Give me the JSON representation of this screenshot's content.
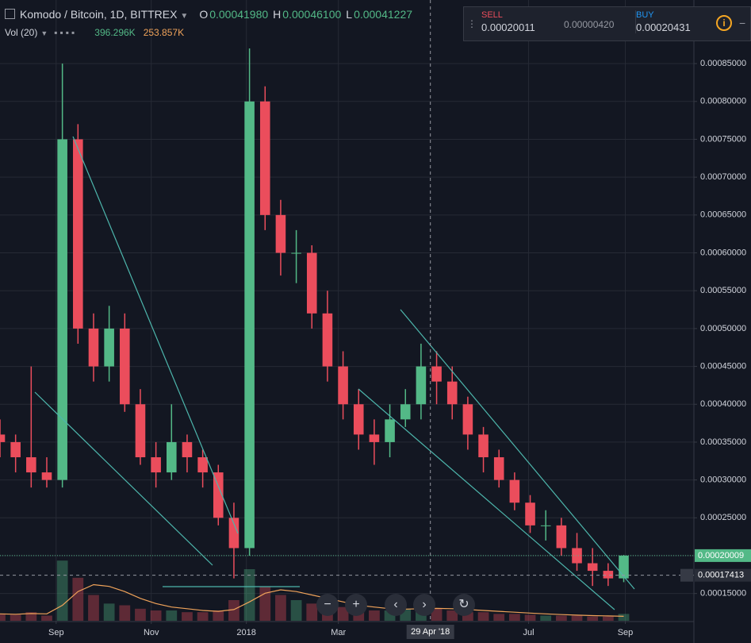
{
  "header": {
    "symbol": "Komodo / Bitcoin, 1D, BITTREX",
    "open_label": "O",
    "open": "0.00041980",
    "high_label": "H",
    "high": "0.00046100",
    "low_label": "L",
    "low": "0.00041227"
  },
  "trade_panel": {
    "sell_label": "SELL",
    "sell": "0.00020011",
    "spread": "0.00000420",
    "buy_label": "BUY",
    "buy": "0.00020431"
  },
  "chart_data": {
    "type": "candlestick",
    "x": [
      0,
      10,
      20,
      30,
      40,
      50,
      60,
      70,
      80,
      90,
      100,
      110,
      120,
      130,
      140,
      150,
      160,
      170,
      180,
      190,
      200,
      210,
      220,
      230,
      240,
      250,
      260,
      270,
      280,
      290,
      300,
      310,
      320,
      330,
      340,
      350,
      360,
      370,
      380,
      390,
      400
    ],
    "open": [
      0.00036,
      0.00035,
      0.00033,
      0.00031,
      0.0003,
      0.00075,
      0.0005,
      0.00045,
      0.0005,
      0.0004,
      0.00033,
      0.00031,
      0.00035,
      0.00033,
      0.00031,
      0.00025,
      0.00021,
      0.0008,
      0.00065,
      0.0006,
      0.0006,
      0.00052,
      0.00045,
      0.0004,
      0.00036,
      0.00035,
      0.00038,
      0.0004,
      0.00045,
      0.00043,
      0.0004,
      0.00036,
      0.00033,
      0.0003,
      0.00027,
      0.00024,
      0.00024,
      0.00021,
      0.00019,
      0.00018,
      0.00017
    ],
    "high": [
      0.00038,
      0.00036,
      0.00045,
      0.00033,
      0.00085,
      0.00077,
      0.00052,
      0.00053,
      0.00052,
      0.00042,
      0.00035,
      0.0004,
      0.00036,
      0.00034,
      0.00032,
      0.00027,
      0.00087,
      0.00082,
      0.00067,
      0.00063,
      0.00061,
      0.00055,
      0.00047,
      0.00042,
      0.00038,
      0.0004,
      0.00042,
      0.00048,
      0.00047,
      0.00045,
      0.00041,
      0.00037,
      0.00034,
      0.00031,
      0.00028,
      0.00026,
      0.00025,
      0.00023,
      0.00021,
      0.00019,
      0.000201
    ],
    "low": [
      0.00033,
      0.00031,
      0.00029,
      0.00029,
      0.00029,
      0.00048,
      0.00043,
      0.00043,
      0.00039,
      0.00032,
      0.00029,
      0.0003,
      0.00031,
      0.00029,
      0.00024,
      0.00017,
      0.0002,
      0.00063,
      0.00057,
      0.00056,
      0.0005,
      0.00043,
      0.00038,
      0.00034,
      0.00032,
      0.00033,
      0.00037,
      0.00038,
      0.0004,
      0.00038,
      0.00034,
      0.00031,
      0.00029,
      0.00026,
      0.00023,
      0.00022,
      0.0002,
      0.00018,
      0.00016,
      0.00016,
      0.000165
    ],
    "close": [
      0.00035,
      0.00033,
      0.00031,
      0.0003,
      0.00075,
      0.0005,
      0.00045,
      0.0005,
      0.0004,
      0.00033,
      0.00031,
      0.00035,
      0.00033,
      0.00031,
      0.00025,
      0.00021,
      0.0008,
      0.00065,
      0.0006,
      0.0006,
      0.00052,
      0.00045,
      0.0004,
      0.00036,
      0.00035,
      0.00038,
      0.0004,
      0.00045,
      0.00043,
      0.0004,
      0.00036,
      0.00033,
      0.0003,
      0.00027,
      0.00024,
      0.00024,
      0.00021,
      0.00019,
      0.00018,
      0.00017,
      0.00020009
    ],
    "up_color": "#53b987",
    "down_color": "#eb4d5c",
    "xlim": [
      0,
      445
    ],
    "xticks": [
      {
        "value": 36,
        "label": "Sep"
      },
      {
        "value": 97,
        "label": "Nov"
      },
      {
        "value": 158,
        "label": "2018"
      },
      {
        "value": 217,
        "label": "Mar"
      },
      {
        "value": 339,
        "label": "Jul"
      },
      {
        "value": 401,
        "label": "Sep"
      }
    ],
    "ylim": [
      0.000114,
      0.000934
    ],
    "yticks": [
      {
        "value": 0.00015,
        "label": "0.00015000"
      },
      {
        "value": 0.0002,
        "label": "0.00020000"
      },
      {
        "value": 0.00025,
        "label": "0.00025000"
      },
      {
        "value": 0.0003,
        "label": "0.00030000"
      },
      {
        "value": 0.00035,
        "label": "0.00035000"
      },
      {
        "value": 0.0004,
        "label": "0.00040000"
      },
      {
        "value": 0.00045,
        "label": "0.00045000"
      },
      {
        "value": 0.0005,
        "label": "0.00050000"
      },
      {
        "value": 0.00055,
        "label": "0.00055000"
      },
      {
        "value": 0.0006,
        "label": "0.00060000"
      },
      {
        "value": 0.00065,
        "label": "0.00065000"
      },
      {
        "value": 0.0007,
        "label": "0.00070000"
      },
      {
        "value": 0.00075,
        "label": "0.00075000"
      },
      {
        "value": 0.0008,
        "label": "0.00080000"
      },
      {
        "value": 0.00085,
        "label": "0.00085000"
      }
    ],
    "grid": true,
    "last_price": {
      "value": 0.00020009,
      "label": "0.00020009"
    },
    "crosshair": {
      "x": {
        "value": 276,
        "label": "29 Apr '18"
      },
      "y": {
        "value": 0.00017413,
        "label": "0.00017413"
      }
    },
    "volume": {
      "title": "Vol (20)",
      "ylim": [
        0,
        6000000
      ],
      "ma_color": "#f0a35a",
      "values": [
        400000,
        350000,
        500000,
        300000,
        3500000,
        2500000,
        1500000,
        1000000,
        900000,
        700000,
        600000,
        600000,
        500000,
        500000,
        600000,
        1200000,
        3000000,
        2000000,
        1500000,
        1200000,
        1000000,
        900000,
        800000,
        700000,
        600000,
        600000,
        700000,
        800000,
        700000,
        600000,
        500000,
        500000,
        400000,
        400000,
        350000,
        300000,
        300000,
        300000,
        250000,
        250000,
        400000
      ],
      "ma": [
        400000,
        380000,
        420000,
        400000,
        900000,
        1700000,
        2100000,
        2000000,
        1700000,
        1300000,
        1000000,
        800000,
        700000,
        600000,
        550000,
        650000,
        1100000,
        1600000,
        1800000,
        1700000,
        1500000,
        1300000,
        1100000,
        900000,
        800000,
        700000,
        680000,
        700000,
        720000,
        700000,
        650000,
        600000,
        550000,
        500000,
        450000,
        400000,
        360000,
        330000,
        300000,
        280000,
        260000
      ],
      "last": {
        "value": 396296,
        "label": "396.296K"
      },
      "ma_last": {
        "value": 253857,
        "label": "253.857K"
      }
    }
  }
}
